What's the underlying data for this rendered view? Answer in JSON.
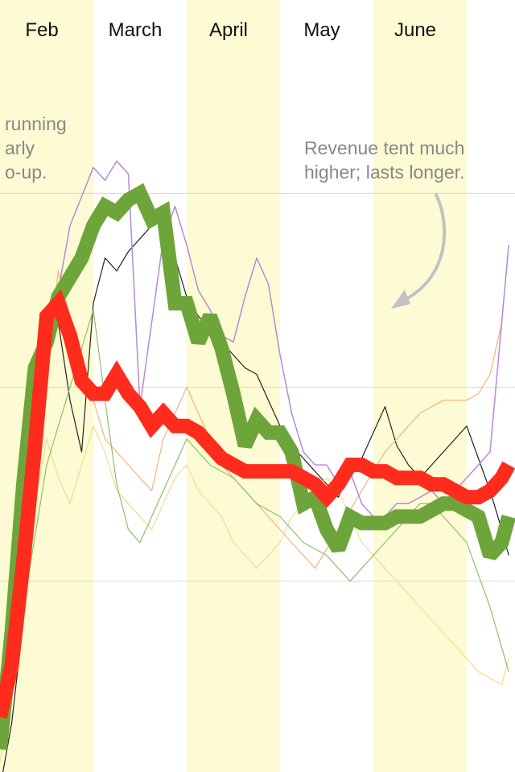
{
  "chart_data": {
    "type": "line",
    "months": [
      {
        "label": "Feb",
        "shaded": true
      },
      {
        "label": "March",
        "shaded": false
      },
      {
        "label": "April",
        "shaded": true
      },
      {
        "label": "May",
        "shaded": false
      },
      {
        "label": "June",
        "shaded": true
      }
    ],
    "annotations": {
      "left": [
        "running",
        "arly",
        "o-up."
      ],
      "right": [
        "Revenue tent much",
        "higher; lasts longer."
      ]
    },
    "ylim": [
      0,
      100
    ],
    "gridlines": [
      30,
      60,
      90
    ],
    "grid": true,
    "x_range": [
      0,
      5.45
    ],
    "colors": {
      "band": "#fdfbd3",
      "grid": "#d6d6d6",
      "arrow": "#c2c2c2",
      "green": "#6da53a",
      "red": "#ff2b1c",
      "purple": "#b78ad6",
      "black": "#222222",
      "orange": "#f3b37a",
      "yellow": "#f7db8a",
      "light-green": "#8cc06a"
    },
    "series": [
      {
        "name": "",
        "color": "#6da53a",
        "width": 18,
        "x": [
          0,
          0.125,
          0.25,
          0.375,
          0.5,
          0.625,
          0.75,
          0.875,
          1,
          1.125,
          1.25,
          1.375,
          1.5,
          1.625,
          1.75,
          1.875,
          2,
          2.125,
          2.25,
          2.375,
          2.5,
          2.625,
          2.75,
          2.875,
          3,
          3.125,
          3.25,
          3.375,
          3.5,
          3.625,
          3.75,
          3.875,
          4,
          4.125,
          4.25,
          4.375,
          4.5,
          4.625,
          4.75,
          4.875,
          5,
          5.125,
          5.25,
          5.375,
          5.45
        ],
        "y": [
          4,
          22,
          45,
          63,
          67,
          74,
          77,
          80,
          85,
          88,
          87,
          89,
          90,
          86,
          87,
          73,
          73,
          67,
          71,
          66,
          59,
          51,
          55,
          53,
          53,
          50,
          42,
          43,
          38,
          35,
          40,
          39,
          39,
          39,
          40,
          40,
          40,
          41,
          42,
          42,
          41,
          40,
          34,
          36,
          40
        ]
      },
      {
        "name": "",
        "color": "#ff2b1c",
        "width": 18,
        "x": [
          0,
          0.125,
          0.25,
          0.375,
          0.5,
          0.625,
          0.75,
          0.875,
          1,
          1.125,
          1.25,
          1.375,
          1.5,
          1.625,
          1.75,
          1.875,
          2,
          2.125,
          2.25,
          2.375,
          2.5,
          2.625,
          2.75,
          2.875,
          3,
          3.125,
          3.25,
          3.375,
          3.5,
          3.625,
          3.75,
          3.875,
          4,
          4.125,
          4.25,
          4.375,
          4.5,
          4.625,
          4.75,
          4.875,
          5,
          5.125,
          5.25,
          5.375,
          5.45
        ],
        "y": [
          9,
          17,
          33,
          51,
          71,
          73,
          68,
          61,
          59,
          59,
          62,
          59,
          57,
          54,
          56,
          54,
          54,
          53,
          51,
          49,
          48,
          47,
          47,
          47,
          47,
          47,
          46,
          45,
          43,
          45,
          48,
          48,
          47,
          47,
          46,
          46,
          46,
          45,
          45,
          44,
          43,
          43,
          44,
          46,
          48
        ]
      },
      {
        "name": "",
        "color": "#b78ad6",
        "width": 1.5,
        "x": [
          0,
          0.25,
          0.5,
          0.75,
          1,
          1.125,
          1.25,
          1.375,
          1.5,
          1.625,
          1.75,
          1.875,
          2,
          2.125,
          2.25,
          2.375,
          2.5,
          2.625,
          2.75,
          2.875,
          3,
          3.125,
          3.25,
          3.375,
          3.5,
          3.625,
          3.75,
          3.875,
          4,
          4.125,
          4.25,
          4.375,
          4.5,
          4.625,
          4.75,
          4.875,
          5,
          5.25,
          5.45
        ],
        "y": [
          10,
          44,
          65,
          85,
          94,
          92,
          95,
          93,
          57,
          70,
          83,
          88,
          82,
          75,
          72,
          68,
          67,
          74,
          80,
          76,
          65,
          56,
          50,
          48,
          48,
          45,
          47,
          42,
          40,
          40,
          42,
          42,
          43,
          44,
          42,
          44,
          46,
          50,
          82
        ]
      },
      {
        "name": "",
        "color": "#222222",
        "width": 1.2,
        "x": [
          0,
          0.125,
          0.25,
          0.375,
          0.5,
          0.625,
          0.75,
          0.875,
          1,
          1.125,
          1.25,
          1.375,
          1.5,
          1.625,
          1.75,
          1.875,
          2,
          2.125,
          2.25,
          2.375,
          2.5,
          2.625,
          2.75,
          2.875,
          3,
          3.125,
          3.25,
          3.375,
          3.5,
          3.625,
          3.75,
          3.875,
          4,
          4.125,
          4.25,
          4.375,
          4.5,
          4.625,
          4.75,
          4.875,
          5,
          5.125,
          5.25,
          5.375,
          5.45
        ],
        "y": [
          -2,
          8,
          24,
          48,
          64,
          70,
          58,
          50,
          73,
          80,
          78,
          81,
          83,
          85,
          87,
          80,
          74,
          71,
          69,
          67,
          65,
          63,
          62,
          58,
          54,
          51,
          49,
          47,
          45,
          43,
          47,
          49,
          53,
          57,
          51,
          48,
          46,
          48,
          50,
          52,
          54,
          49,
          44,
          38,
          34
        ]
      },
      {
        "name": "",
        "color": "#f3b37a",
        "width": 1.2,
        "x": [
          0,
          0.125,
          0.25,
          0.375,
          0.5,
          0.625,
          0.75,
          0.875,
          1,
          1.125,
          1.25,
          1.375,
          1.5,
          1.625,
          1.75,
          1.875,
          2,
          2.125,
          2.25,
          2.375,
          2.5,
          2.625,
          2.75,
          2.875,
          3,
          3.125,
          3.25,
          3.375,
          3.5,
          3.625,
          3.75,
          3.875,
          4,
          4.125,
          4.25,
          4.375,
          4.5,
          4.625,
          4.75,
          4.875,
          5,
          5.125,
          5.25,
          5.375,
          5.45
        ],
        "y": [
          6,
          16,
          30,
          46,
          62,
          78,
          71,
          64,
          58,
          52,
          50,
          48,
          46,
          44,
          52,
          56,
          60,
          56,
          52,
          48,
          46,
          44,
          42,
          40,
          38,
          36,
          34,
          32,
          35,
          38,
          41,
          44,
          47,
          50,
          52,
          54,
          56,
          57,
          58,
          58,
          58,
          59,
          62,
          70,
          82
        ]
      },
      {
        "name": "",
        "color": "#f7db8a",
        "width": 1.2,
        "x": [
          0,
          0.125,
          0.25,
          0.375,
          0.5,
          0.625,
          0.75,
          0.875,
          1,
          1.125,
          1.25,
          1.375,
          1.5,
          1.625,
          1.75,
          1.875,
          2,
          2.125,
          2.25,
          2.375,
          2.5,
          2.625,
          2.75,
          2.875,
          3,
          3.125,
          3.25,
          3.375,
          3.5,
          3.625,
          3.75,
          3.875,
          4,
          4.125,
          4.25,
          4.375,
          4.5,
          4.625,
          4.75,
          4.875,
          5,
          5.125,
          5.25,
          5.375,
          5.45
        ],
        "y": [
          2,
          14,
          28,
          42,
          52,
          46,
          42,
          48,
          54,
          50,
          44,
          42,
          40,
          38,
          42,
          46,
          48,
          44,
          42,
          40,
          36,
          34,
          32,
          34,
          36,
          40,
          42,
          44,
          46,
          44,
          40,
          36,
          34,
          32,
          30,
          28,
          26,
          24,
          22,
          20,
          18,
          16,
          15,
          14,
          18
        ]
      },
      {
        "name": "",
        "color": "#8cc06a",
        "width": 1.2,
        "x": [
          0,
          0.25,
          0.5,
          0.75,
          1,
          1.125,
          1.25,
          1.375,
          1.5,
          1.625,
          1.75,
          1.875,
          2,
          2.125,
          2.25,
          2.375,
          2.5,
          2.625,
          2.75,
          2.875,
          3,
          3.125,
          3.25,
          3.375,
          3.5,
          3.625,
          3.75,
          3.875,
          4,
          4.125,
          4.25,
          4.375,
          4.5,
          4.625,
          4.75,
          4.875,
          5,
          5.25,
          5.45
        ],
        "y": [
          8,
          26,
          48,
          60,
          72,
          58,
          45,
          38,
          36,
          40,
          44,
          48,
          52,
          50,
          48,
          47,
          46,
          44,
          42,
          41,
          40,
          38,
          36,
          35,
          34,
          32,
          30,
          32,
          34,
          36,
          38,
          40,
          42,
          42,
          40,
          38,
          36,
          26,
          16
        ]
      }
    ]
  }
}
